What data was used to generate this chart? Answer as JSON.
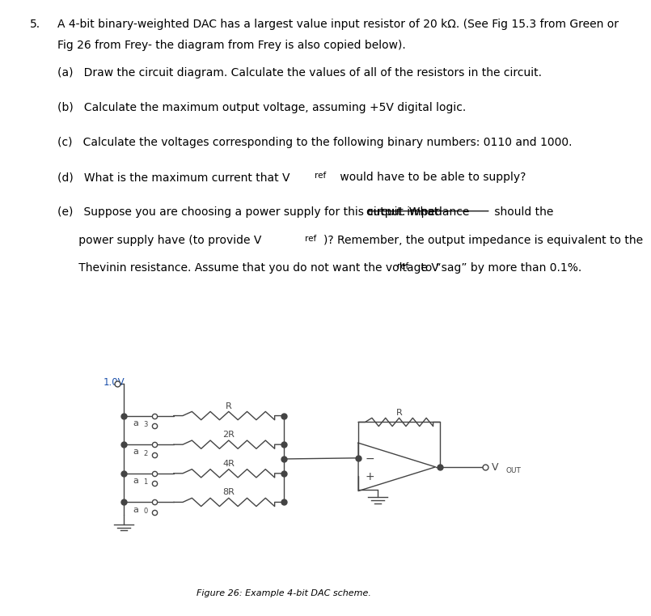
{
  "title_num": "5.",
  "title_line1": "A 4-bit binary-weighted DAC has a largest value input resistor of 20 kΩ. (See Fig 15.3 from Green or",
  "title_line2": "Fig 26 from Frey- the diagram from Frey is also copied below).",
  "part_a": "(a)   Draw the circuit diagram. Calculate the values of all of the resistors in the circuit.",
  "part_b": "(b)   Calculate the maximum output voltage, assuming +5V digital logic.",
  "part_c": "(c)   Calculate the voltages corresponding to the following binary numbers: 0110 and 1000.",
  "part_d_pre": "(d)   What is the maximum current that V",
  "part_d_sub": "ref",
  "part_d_post": " would have to be able to supply?",
  "part_e_pre": "(e)   Suppose you are choosing a power supply for this circuit. What ",
  "part_e_underline": "output impedance",
  "part_e_post": " should the",
  "part_e_line2_pre": "      power supply have (to provide V",
  "part_e_line2_sub": "ref",
  "part_e_line2_post": ")? Remember, the output impedance is equivalent to the",
  "part_e_line3_pre": "      Thevinin resistance. Assume that you do not want the voltage V",
  "part_e_line3_sub": "ref",
  "part_e_line3_post": " to “sag” by more than 0.1%.",
  "divider_color": "#555555",
  "bg_color": "#ffffff",
  "fig_caption": "Figure 26: Example 4-bit DAC scheme.",
  "voltage_label": "1.0V",
  "voltage_label_color": "#1a4faa",
  "resistor_labels": [
    "R",
    "2R",
    "4R",
    "8R"
  ],
  "input_letters": [
    "a",
    "a",
    "a",
    "a"
  ],
  "input_subscripts": [
    "3",
    "2",
    "1",
    "0"
  ],
  "feedback_r_label": "R",
  "vout_label": "V",
  "vout_sub": "OUT",
  "text_color": "#000000",
  "circuit_color": "#444444"
}
